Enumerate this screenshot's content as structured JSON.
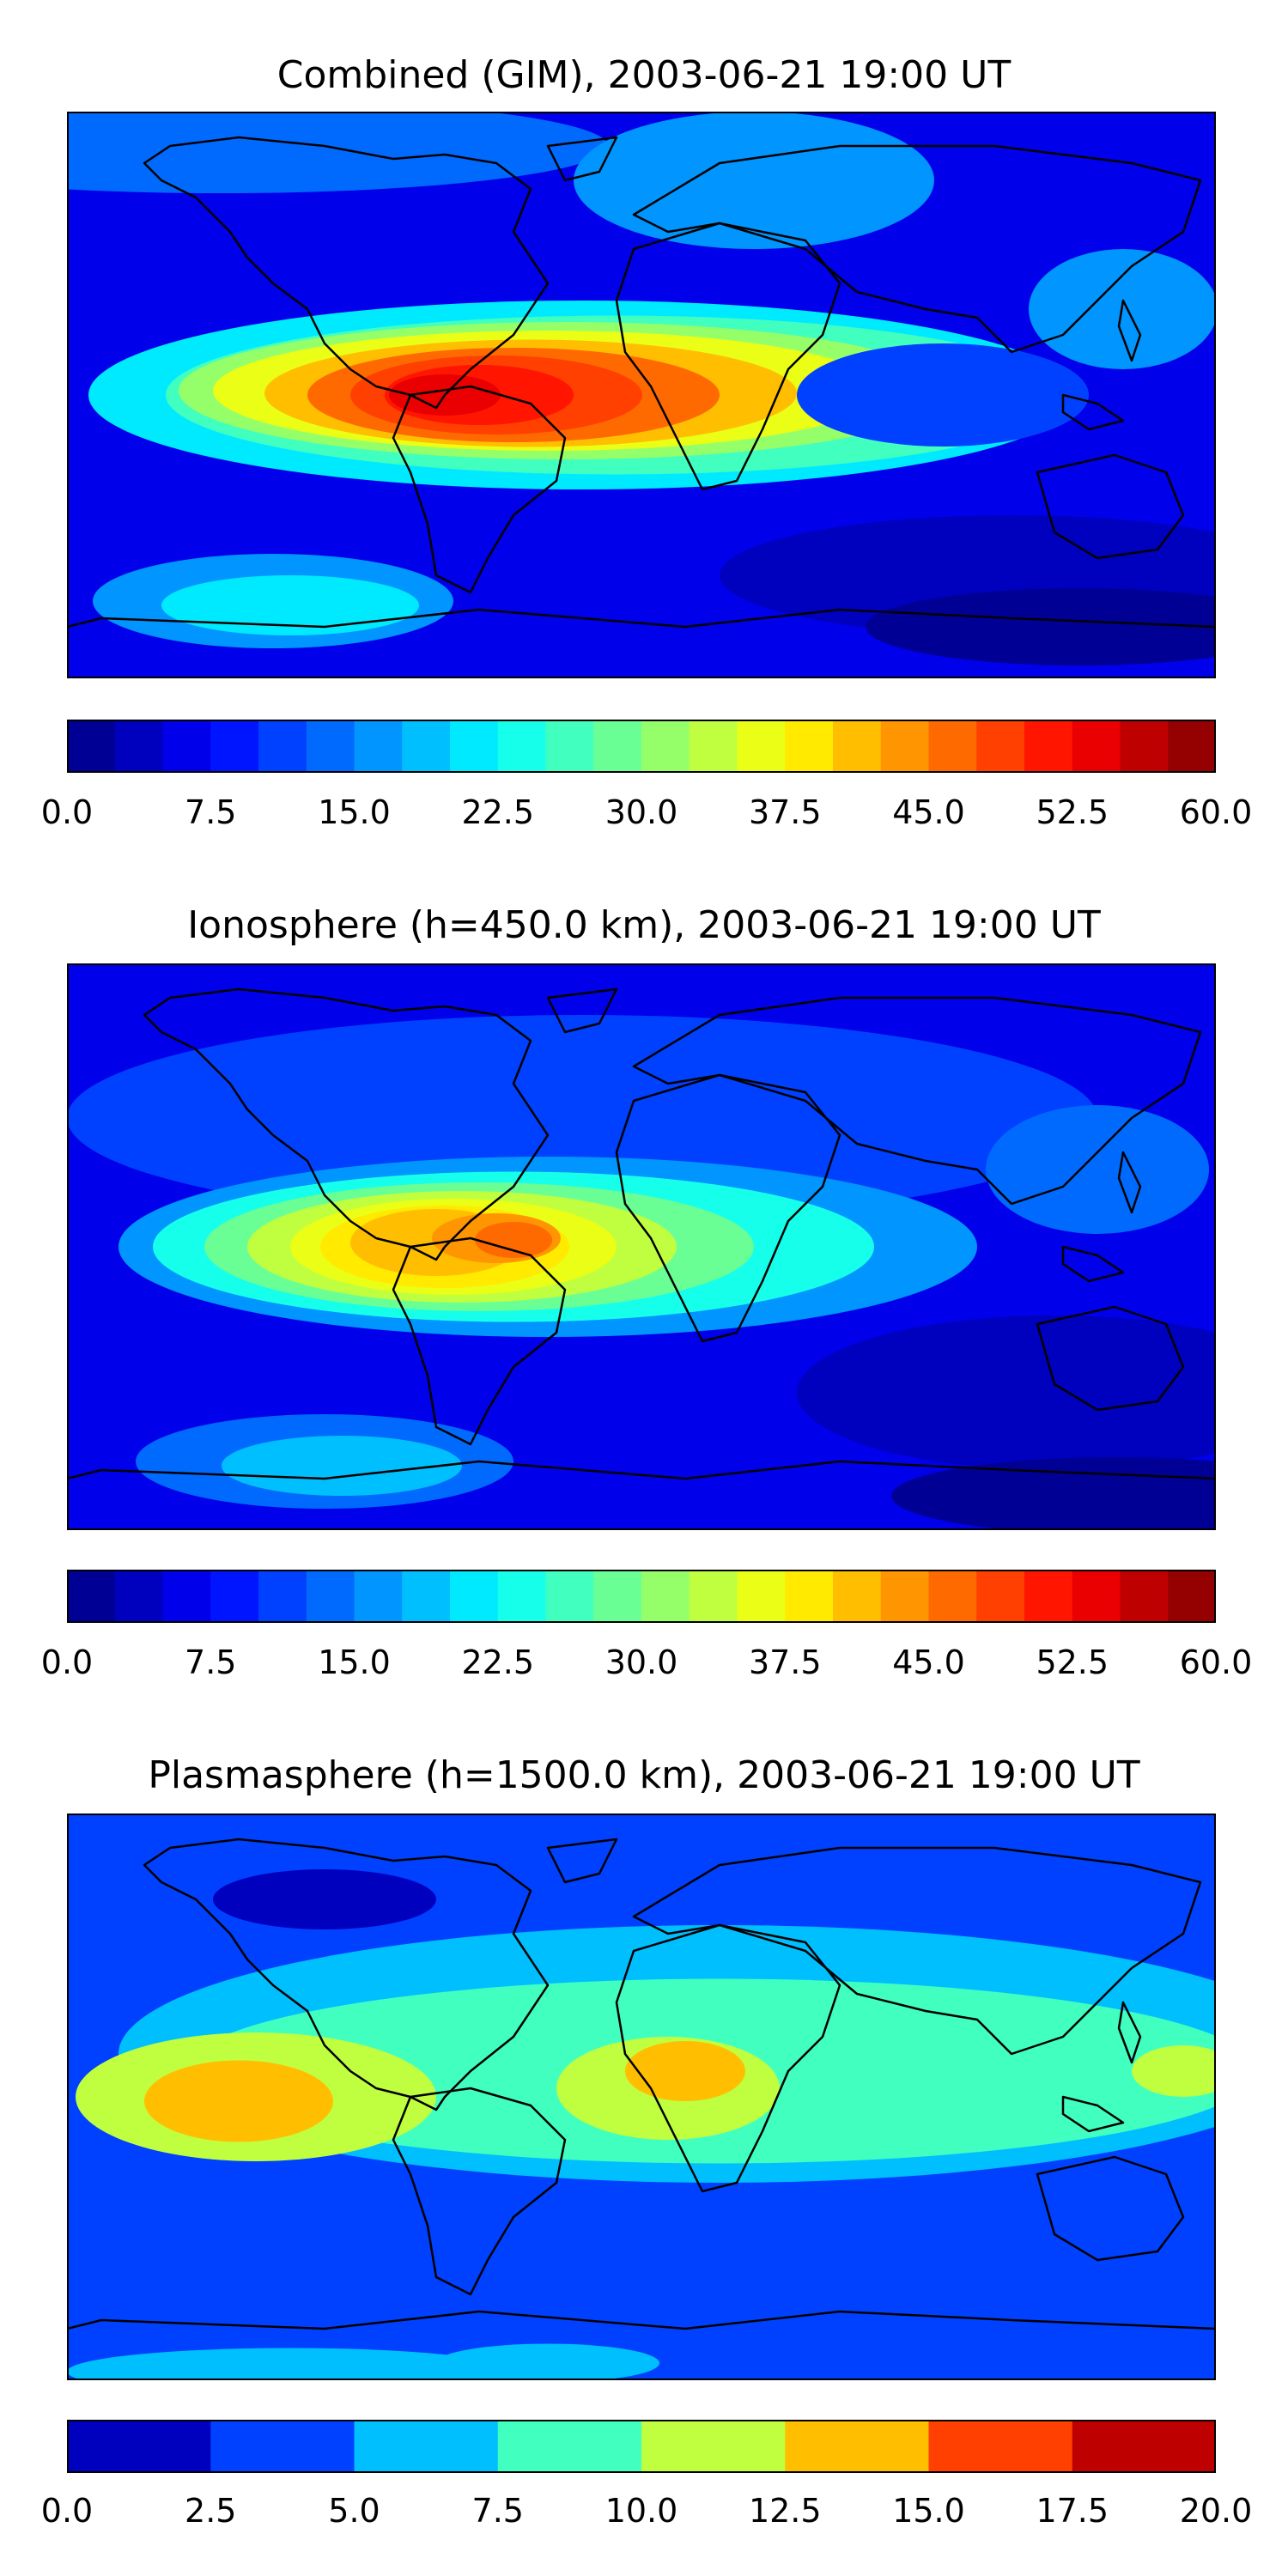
{
  "panels": [
    {
      "id": "combined",
      "title": "Combined (GIM), 2003-06-21 19:00 UT",
      "colorbar": {
        "vmin": 0,
        "vmax": 60,
        "levels": 24,
        "ticks": [
          "0.0",
          "7.5",
          "15.0",
          "22.5",
          "30.0",
          "37.5",
          "45.0",
          "52.5",
          "60.0"
        ]
      }
    },
    {
      "id": "ionosphere",
      "title": "Ionosphere  (h=450.0 km), 2003-06-21 19:00 UT",
      "colorbar": {
        "vmin": 0,
        "vmax": 60,
        "levels": 24,
        "ticks": [
          "0.0",
          "7.5",
          "15.0",
          "22.5",
          "30.0",
          "37.5",
          "45.0",
          "52.5",
          "60.0"
        ]
      }
    },
    {
      "id": "plasmasphere",
      "title": "Plasmasphere (h=1500.0 km), 2003-06-21 19:00 UT",
      "colorbar": {
        "vmin": 0,
        "vmax": 20,
        "levels": 8,
        "ticks": [
          "0.0",
          "2.5",
          "5.0",
          "7.5",
          "10.0",
          "12.5",
          "15.0",
          "17.5",
          "20.0"
        ]
      }
    }
  ],
  "colormap": "jet"
}
